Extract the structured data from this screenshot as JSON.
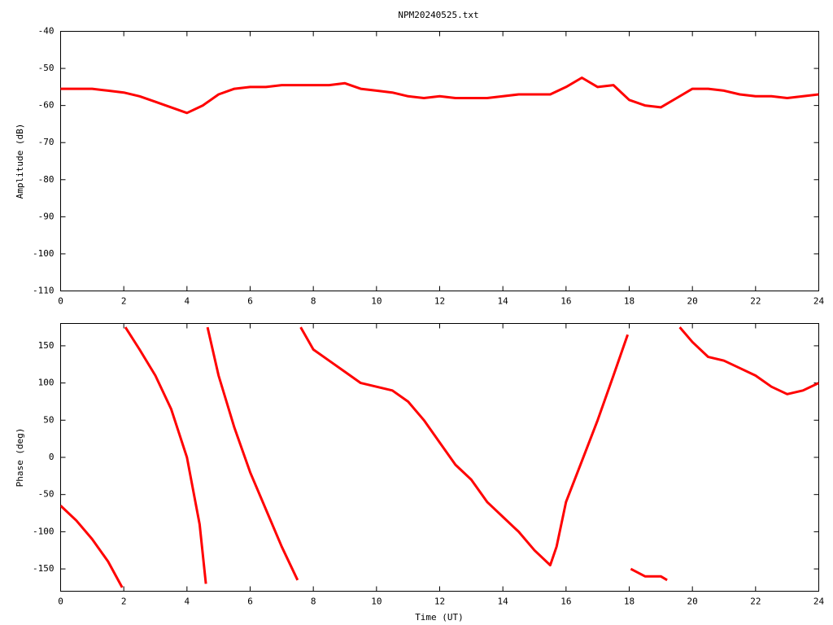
{
  "chart_data": [
    {
      "type": "line",
      "title": "NPM20240525.txt",
      "ylabel": "Amplitude (dB)",
      "x": [
        0,
        0.5,
        1,
        1.5,
        2,
        2.5,
        3,
        3.5,
        4,
        4.5,
        5,
        5.5,
        6,
        6.5,
        7,
        7.5,
        8,
        8.5,
        9,
        9.5,
        10,
        10.5,
        11,
        11.5,
        12,
        12.5,
        13,
        13.5,
        14,
        14.5,
        15,
        15.5,
        16,
        16.5,
        17,
        17.5,
        18,
        18.5,
        19,
        19.5,
        20,
        20.5,
        21,
        21.5,
        22,
        22.5,
        23,
        23.5,
        24
      ],
      "series": [
        {
          "color": "#ff0000",
          "values": [
            -55.5,
            -55.5,
            -55.5,
            -56,
            -56.5,
            -57.5,
            -59,
            -60.5,
            -62,
            -60,
            -57,
            -55.5,
            -55,
            -55,
            -54.5,
            -54.5,
            -54.5,
            -54.5,
            -54,
            -55.5,
            -56,
            -56.5,
            -57.5,
            -58,
            -57.5,
            -58,
            -58,
            -58,
            -57.5,
            -57,
            -57,
            -57,
            -55,
            -52.5,
            -55,
            -54.5,
            -58.5,
            -60,
            -60.5,
            -58,
            -55.5,
            -55.5,
            -56,
            -57,
            -57.5,
            -57.5,
            -58,
            -57.5,
            -57
          ]
        }
      ],
      "xlim": [
        0,
        24
      ],
      "xticks": [
        0,
        2,
        4,
        6,
        8,
        10,
        12,
        14,
        16,
        18,
        20,
        22,
        24
      ],
      "ylim": [
        -110,
        -40
      ],
      "yticks": [
        -110,
        -100,
        -90,
        -80,
        -70,
        -60,
        -50,
        -40
      ]
    },
    {
      "type": "line",
      "xlabel": "Time (UT)",
      "ylabel": "Phase (deg)",
      "x": [
        0,
        0.5,
        1,
        1.5,
        1.95,
        2.0,
        2.05,
        2.5,
        3,
        3.5,
        4,
        4.4,
        4.6,
        4.62,
        4.65,
        5,
        5.5,
        6,
        6.5,
        7,
        7.5,
        7.55,
        7.6,
        8,
        8.5,
        9,
        9.5,
        10,
        10.5,
        11,
        11.5,
        12,
        12.5,
        13,
        13.5,
        14,
        14.5,
        15,
        15.5,
        15.7,
        16,
        16.5,
        17,
        17.5,
        17.95,
        18.0,
        18.05,
        18.5,
        19,
        19.2,
        19.25,
        19.6,
        20,
        20.5,
        21,
        21.5,
        22,
        22.5,
        23,
        23.5,
        24
      ],
      "series": [
        {
          "color": "#ff0000",
          "values": [
            -65,
            -85,
            -110,
            -140,
            -175,
            null,
            175,
            145,
            110,
            65,
            0,
            -90,
            -170,
            null,
            175,
            110,
            40,
            -20,
            -70,
            -120,
            -165,
            null,
            175,
            145,
            130,
            115,
            100,
            95,
            90,
            75,
            50,
            20,
            -10,
            -30,
            -60,
            -80,
            -100,
            -125,
            -145,
            -120,
            -60,
            -5,
            50,
            110,
            165,
            null,
            -150,
            -160,
            -160,
            -165,
            null,
            175,
            155,
            135,
            130,
            120,
            110,
            95,
            85,
            90,
            100
          ]
        }
      ],
      "xlim": [
        0,
        24
      ],
      "xticks": [
        0,
        2,
        4,
        6,
        8,
        10,
        12,
        14,
        16,
        18,
        20,
        22,
        24
      ],
      "ylim": [
        -180,
        180
      ],
      "yticks": [
        -150,
        -100,
        -50,
        0,
        50,
        100,
        150
      ]
    }
  ]
}
